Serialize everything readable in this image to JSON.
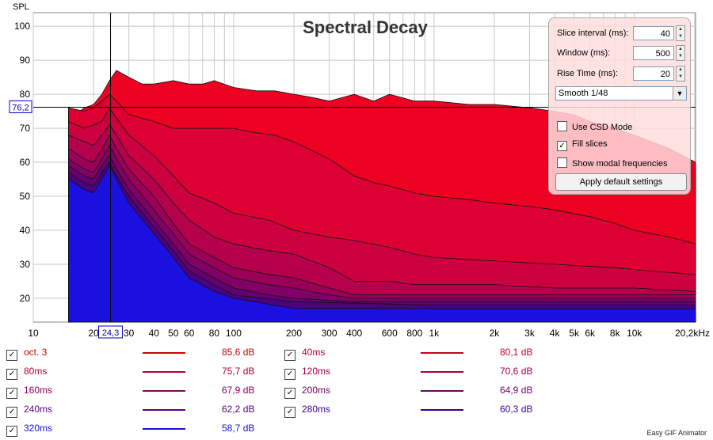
{
  "colors": {
    "plot_bg": "#ffffff",
    "grid": "#c8c8c8",
    "cursor": "#000000",
    "slice_colors": [
      "#ee0022",
      "#dd0033",
      "#cc0040",
      "#b5004c",
      "#9a0058",
      "#800065",
      "#650070",
      "#4a0080",
      "#1a10e0"
    ]
  },
  "chart_data": {
    "type": "area",
    "title": "Spectral Decay",
    "ylabel": "SPL",
    "xlabel": "",
    "xscale": "log",
    "xlim": [
      10,
      20200
    ],
    "ylim": [
      13,
      104
    ],
    "grid": true,
    "x_ticks": [
      "10",
      "20",
      "24,3",
      "30",
      "40",
      "50",
      "60",
      "80",
      "100",
      "200",
      "300",
      "400",
      "600",
      "800",
      "1k",
      "2k",
      "3k",
      "4k",
      "5k",
      "6k",
      "8k",
      "10k",
      "20,2kHz"
    ],
    "y_ticks": [
      "100",
      "90",
      "80",
      "70",
      "60",
      "50",
      "40",
      "30",
      "20"
    ],
    "cursor": {
      "x": 24.3,
      "y": 76.2,
      "x_label": "24,3",
      "y_label": "76,2"
    },
    "series": [
      {
        "name": "oct. 3",
        "points": [
          [
            15,
            76
          ],
          [
            16,
            74
          ],
          [
            18,
            76
          ],
          [
            20,
            77
          ],
          [
            22,
            80
          ],
          [
            24,
            84
          ],
          [
            26,
            87
          ],
          [
            30,
            85
          ],
          [
            35,
            83
          ],
          [
            40,
            83
          ],
          [
            50,
            84
          ],
          [
            60,
            83
          ],
          [
            70,
            83
          ],
          [
            80,
            84
          ],
          [
            100,
            82
          ],
          [
            130,
            81
          ],
          [
            160,
            81
          ],
          [
            200,
            80
          ],
          [
            250,
            79
          ],
          [
            300,
            78
          ],
          [
            400,
            80
          ],
          [
            500,
            78
          ],
          [
            600,
            80
          ],
          [
            800,
            78
          ],
          [
            1000,
            78
          ],
          [
            1500,
            77
          ],
          [
            2000,
            77
          ],
          [
            3000,
            76
          ],
          [
            4000,
            75
          ],
          [
            5000,
            74
          ],
          [
            6000,
            72
          ],
          [
            8000,
            70
          ],
          [
            10000,
            68
          ],
          [
            15000,
            64
          ],
          [
            20200,
            60
          ]
        ]
      },
      {
        "name": "40ms",
        "points": [
          [
            15,
            76
          ],
          [
            18,
            75
          ],
          [
            20,
            76
          ],
          [
            22,
            78
          ],
          [
            24,
            80
          ],
          [
            26,
            78
          ],
          [
            30,
            74
          ],
          [
            40,
            72
          ],
          [
            50,
            70
          ],
          [
            60,
            70
          ],
          [
            80,
            70
          ],
          [
            100,
            70
          ],
          [
            120,
            69
          ],
          [
            160,
            68
          ],
          [
            200,
            66
          ],
          [
            300,
            61
          ],
          [
            400,
            56
          ],
          [
            500,
            54
          ],
          [
            600,
            53
          ],
          [
            800,
            51
          ],
          [
            1000,
            50
          ],
          [
            1500,
            49
          ],
          [
            2000,
            48
          ],
          [
            3000,
            47
          ],
          [
            4000,
            46
          ],
          [
            6000,
            44
          ],
          [
            8000,
            42
          ],
          [
            10000,
            40
          ],
          [
            15000,
            38
          ],
          [
            20200,
            36
          ]
        ]
      },
      {
        "name": "80ms",
        "points": [
          [
            15,
            72
          ],
          [
            18,
            70
          ],
          [
            20,
            71
          ],
          [
            22,
            72
          ],
          [
            24,
            76
          ],
          [
            26,
            73
          ],
          [
            30,
            68
          ],
          [
            40,
            62
          ],
          [
            50,
            56
          ],
          [
            60,
            51
          ],
          [
            80,
            48
          ],
          [
            100,
            45
          ],
          [
            150,
            43
          ],
          [
            200,
            40
          ],
          [
            300,
            38
          ],
          [
            400,
            37
          ],
          [
            600,
            35
          ],
          [
            800,
            33
          ],
          [
            1000,
            32
          ],
          [
            2000,
            31
          ],
          [
            4000,
            30
          ],
          [
            8000,
            29
          ],
          [
            12000,
            28
          ],
          [
            20200,
            27
          ]
        ]
      },
      {
        "name": "120ms",
        "points": [
          [
            15,
            68
          ],
          [
            18,
            66
          ],
          [
            20,
            65
          ],
          [
            22,
            68
          ],
          [
            24,
            71
          ],
          [
            26,
            68
          ],
          [
            30,
            62
          ],
          [
            40,
            55
          ],
          [
            50,
            48
          ],
          [
            60,
            43
          ],
          [
            80,
            38
          ],
          [
            100,
            36
          ],
          [
            150,
            34
          ],
          [
            200,
            33
          ],
          [
            300,
            29
          ],
          [
            400,
            25
          ],
          [
            600,
            25
          ],
          [
            800,
            24
          ],
          [
            1000,
            24
          ],
          [
            2000,
            24
          ],
          [
            4000,
            23
          ],
          [
            10000,
            23
          ],
          [
            20200,
            22
          ]
        ]
      },
      {
        "name": "160ms",
        "points": [
          [
            15,
            64
          ],
          [
            18,
            61
          ],
          [
            20,
            60
          ],
          [
            22,
            64
          ],
          [
            24,
            68
          ],
          [
            26,
            64
          ],
          [
            30,
            58
          ],
          [
            40,
            50
          ],
          [
            50,
            42
          ],
          [
            60,
            36
          ],
          [
            80,
            32
          ],
          [
            100,
            29
          ],
          [
            150,
            27
          ],
          [
            200,
            26
          ],
          [
            300,
            23
          ],
          [
            400,
            21
          ],
          [
            600,
            21
          ],
          [
            1000,
            21
          ],
          [
            2000,
            21
          ],
          [
            4000,
            21
          ],
          [
            10000,
            21
          ],
          [
            20200,
            21
          ]
        ]
      },
      {
        "name": "200ms",
        "points": [
          [
            15,
            61
          ],
          [
            18,
            58
          ],
          [
            20,
            57
          ],
          [
            22,
            61
          ],
          [
            24,
            65
          ],
          [
            26,
            61
          ],
          [
            30,
            55
          ],
          [
            40,
            46
          ],
          [
            50,
            39
          ],
          [
            60,
            33
          ],
          [
            80,
            29
          ],
          [
            100,
            26
          ],
          [
            150,
            24
          ],
          [
            200,
            23
          ],
          [
            300,
            21
          ],
          [
            400,
            20
          ],
          [
            1000,
            20
          ],
          [
            4000,
            20
          ],
          [
            20200,
            20
          ]
        ]
      },
      {
        "name": "240ms",
        "points": [
          [
            15,
            59
          ],
          [
            18,
            56
          ],
          [
            20,
            55
          ],
          [
            22,
            59
          ],
          [
            24,
            62
          ],
          [
            26,
            58
          ],
          [
            30,
            52
          ],
          [
            40,
            43
          ],
          [
            50,
            36
          ],
          [
            60,
            30
          ],
          [
            80,
            26
          ],
          [
            100,
            23
          ],
          [
            150,
            21
          ],
          [
            200,
            20
          ],
          [
            400,
            19
          ],
          [
            1000,
            19
          ],
          [
            20200,
            19
          ]
        ]
      },
      {
        "name": "280ms",
        "points": [
          [
            15,
            57
          ],
          [
            18,
            54
          ],
          [
            20,
            53
          ],
          [
            22,
            57
          ],
          [
            24,
            60
          ],
          [
            26,
            56
          ],
          [
            30,
            50
          ],
          [
            40,
            41
          ],
          [
            50,
            34
          ],
          [
            60,
            28
          ],
          [
            80,
            24
          ],
          [
            100,
            21
          ],
          [
            200,
            19
          ],
          [
            1000,
            18
          ],
          [
            20200,
            18
          ]
        ]
      },
      {
        "name": "320ms",
        "points": [
          [
            15,
            55
          ],
          [
            18,
            52
          ],
          [
            20,
            51
          ],
          [
            22,
            55
          ],
          [
            24,
            59
          ],
          [
            26,
            55
          ],
          [
            30,
            48
          ],
          [
            40,
            39
          ],
          [
            50,
            32
          ],
          [
            60,
            26
          ],
          [
            80,
            22
          ],
          [
            100,
            20
          ],
          [
            200,
            17
          ],
          [
            1000,
            17
          ],
          [
            20200,
            17
          ]
        ]
      }
    ]
  },
  "legend": [
    {
      "label": "oct. 3",
      "value": "85,6 dB",
      "color": "#cc0000",
      "checked": true
    },
    {
      "label": "40ms",
      "value": "80,1 dB",
      "color": "#cc0022",
      "checked": true
    },
    {
      "label": "80ms",
      "value": "75,7 dB",
      "color": "#b0003a",
      "checked": true
    },
    {
      "label": "120ms",
      "value": "70,6 dB",
      "color": "#9c0048",
      "checked": true
    },
    {
      "label": "160ms",
      "value": "67,9 dB",
      "color": "#8a0058",
      "checked": true
    },
    {
      "label": "200ms",
      "value": "64,9 dB",
      "color": "#700068",
      "checked": true
    },
    {
      "label": "240ms",
      "value": "62,2 dB",
      "color": "#5a0078",
      "checked": true
    },
    {
      "label": "280ms",
      "value": "60,3 dB",
      "color": "#3a0090",
      "checked": true
    },
    {
      "label": "320ms",
      "value": "58,7 dB",
      "color": "#1a10d0",
      "checked": true
    }
  ],
  "panel": {
    "slice_interval_label": "Slice interval (ms):",
    "slice_interval_value": "40",
    "window_label": "Window (ms):",
    "window_value": "500",
    "rise_time_label": "Rise Time (ms):",
    "rise_time_value": "20",
    "smoothing_value": "Smooth 1/48",
    "use_csd_label": "Use CSD Mode",
    "use_csd_checked": false,
    "fill_slices_label": "Fill slices",
    "fill_slices_checked": true,
    "modal_label": "Show modal frequencies",
    "modal_checked": false,
    "apply_label": "Apply default settings"
  },
  "footer": "Easy GIF Animator"
}
